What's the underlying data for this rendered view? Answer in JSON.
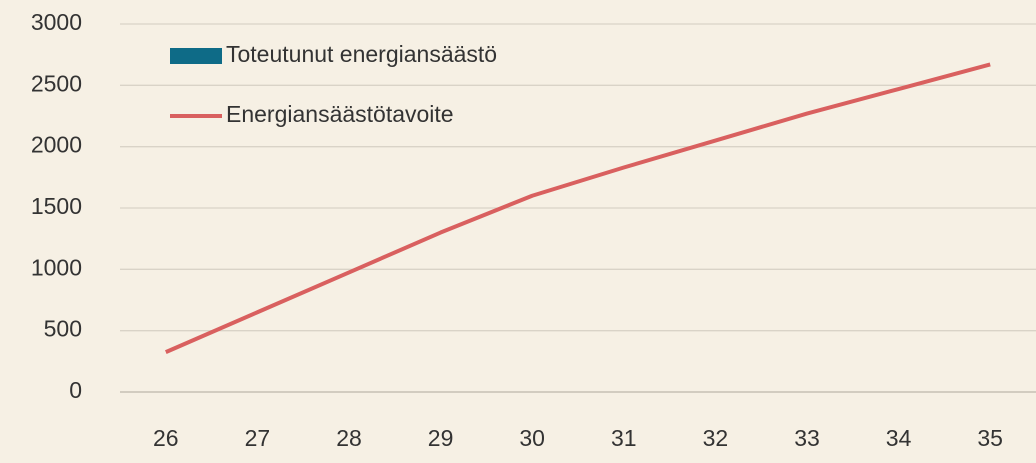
{
  "chart_data": {
    "type": "line",
    "categories": [
      "26",
      "27",
      "28",
      "29",
      "30",
      "31",
      "32",
      "33",
      "34",
      "35"
    ],
    "series": [
      {
        "name": "Toteutunut energiansäästö",
        "type": "bar",
        "color": "#0e6b87",
        "values": [
          null,
          null,
          null,
          null,
          null,
          null,
          null,
          null,
          null,
          null
        ]
      },
      {
        "name": "Energiansäästötavoite",
        "type": "line",
        "color": "#d9605f",
        "values": [
          325,
          650,
          975,
          1300,
          1600,
          1830,
          2050,
          2270,
          2470,
          2670
        ]
      }
    ],
    "ylim": [
      0,
      3000
    ],
    "yticks": [
      0,
      500,
      1000,
      1500,
      2000,
      2500,
      3000
    ],
    "grid": true,
    "legend": "top-left"
  }
}
